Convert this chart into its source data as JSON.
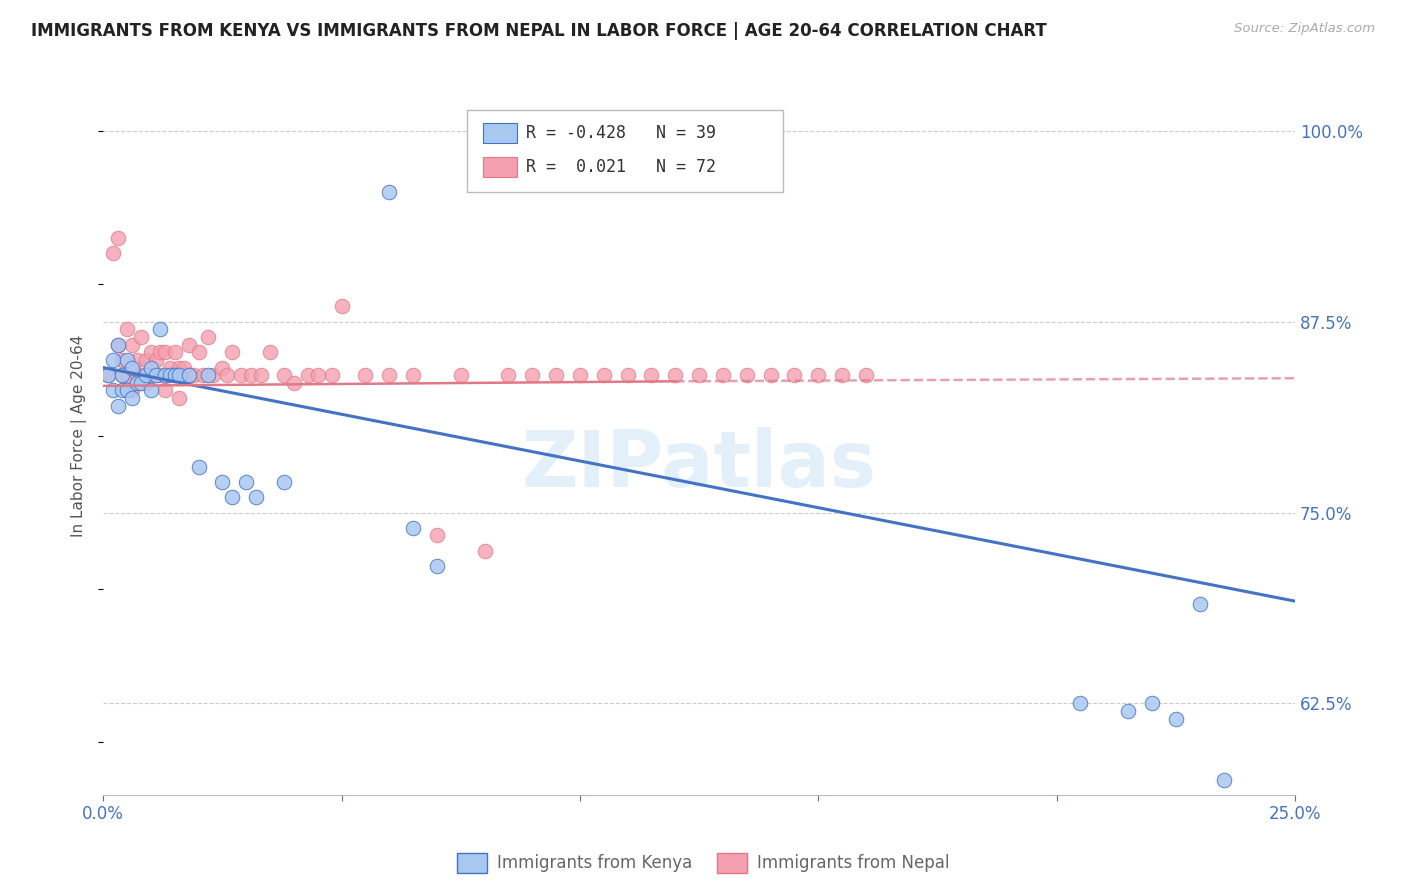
{
  "title": "IMMIGRANTS FROM KENYA VS IMMIGRANTS FROM NEPAL IN LABOR FORCE | AGE 20-64 CORRELATION CHART",
  "source": "Source: ZipAtlas.com",
  "ylabel": "In Labor Force | Age 20-64",
  "xlim": [
    0.0,
    0.25
  ],
  "ylim": [
    0.565,
    1.035
  ],
  "yticks": [
    0.625,
    0.75,
    0.875,
    1.0
  ],
  "ytick_labels": [
    "62.5%",
    "75.0%",
    "87.5%",
    "100.0%"
  ],
  "xticks": [
    0.0,
    0.05,
    0.1,
    0.15,
    0.2,
    0.25
  ],
  "xtick_labels": [
    "0.0%",
    "",
    "",
    "",
    "",
    "25.0%"
  ],
  "kenya_R": -0.428,
  "kenya_N": 39,
  "nepal_R": 0.021,
  "nepal_N": 72,
  "kenya_color": "#a8c8f0",
  "nepal_color": "#f4a0b0",
  "kenya_edge_color": "#4472c4",
  "nepal_edge_color": "#e07888",
  "kenya_line_color": "#4472c4",
  "nepal_line_color": "#e07888",
  "kenya_scatter_x": [
    0.001,
    0.002,
    0.002,
    0.003,
    0.003,
    0.004,
    0.004,
    0.005,
    0.005,
    0.006,
    0.006,
    0.007,
    0.008,
    0.009,
    0.01,
    0.01,
    0.011,
    0.012,
    0.013,
    0.014,
    0.015,
    0.016,
    0.018,
    0.02,
    0.022,
    0.025,
    0.027,
    0.03,
    0.032,
    0.038,
    0.06,
    0.065,
    0.07,
    0.205,
    0.215,
    0.22,
    0.225,
    0.23,
    0.235
  ],
  "kenya_scatter_y": [
    0.84,
    0.85,
    0.83,
    0.86,
    0.82,
    0.84,
    0.83,
    0.85,
    0.83,
    0.845,
    0.825,
    0.835,
    0.835,
    0.84,
    0.845,
    0.83,
    0.84,
    0.87,
    0.84,
    0.84,
    0.84,
    0.84,
    0.84,
    0.78,
    0.84,
    0.77,
    0.76,
    0.77,
    0.76,
    0.77,
    0.96,
    0.74,
    0.715,
    0.625,
    0.62,
    0.625,
    0.615,
    0.69,
    0.575
  ],
  "nepal_scatter_x": [
    0.001,
    0.002,
    0.003,
    0.003,
    0.004,
    0.004,
    0.005,
    0.005,
    0.006,
    0.006,
    0.007,
    0.007,
    0.008,
    0.008,
    0.009,
    0.009,
    0.01,
    0.01,
    0.011,
    0.011,
    0.012,
    0.012,
    0.013,
    0.013,
    0.014,
    0.015,
    0.015,
    0.016,
    0.016,
    0.017,
    0.018,
    0.018,
    0.019,
    0.02,
    0.021,
    0.022,
    0.023,
    0.025,
    0.026,
    0.027,
    0.029,
    0.031,
    0.033,
    0.035,
    0.038,
    0.04,
    0.043,
    0.045,
    0.048,
    0.05,
    0.055,
    0.06,
    0.065,
    0.07,
    0.075,
    0.08,
    0.085,
    0.09,
    0.095,
    0.1,
    0.105,
    0.11,
    0.115,
    0.12,
    0.125,
    0.13,
    0.135,
    0.14,
    0.145,
    0.15,
    0.155,
    0.16
  ],
  "nepal_scatter_y": [
    0.84,
    0.92,
    0.93,
    0.86,
    0.85,
    0.84,
    0.87,
    0.84,
    0.86,
    0.83,
    0.85,
    0.84,
    0.865,
    0.84,
    0.85,
    0.835,
    0.855,
    0.84,
    0.85,
    0.84,
    0.855,
    0.84,
    0.855,
    0.83,
    0.845,
    0.855,
    0.84,
    0.845,
    0.825,
    0.845,
    0.86,
    0.84,
    0.84,
    0.855,
    0.84,
    0.865,
    0.84,
    0.845,
    0.84,
    0.855,
    0.84,
    0.84,
    0.84,
    0.855,
    0.84,
    0.835,
    0.84,
    0.84,
    0.84,
    0.885,
    0.84,
    0.84,
    0.84,
    0.735,
    0.84,
    0.725,
    0.84,
    0.84,
    0.84,
    0.84,
    0.84,
    0.84,
    0.84,
    0.84,
    0.84,
    0.84,
    0.84,
    0.84,
    0.84,
    0.84,
    0.84,
    0.84
  ],
  "kenya_trend_x": [
    0.0,
    0.25
  ],
  "kenya_trend_y": [
    0.845,
    0.692
  ],
  "nepal_solid_trend_x": [
    0.0,
    0.12
  ],
  "nepal_solid_trend_y": [
    0.833,
    0.836
  ],
  "nepal_dashed_trend_x": [
    0.12,
    0.25
  ],
  "nepal_dashed_trend_y": [
    0.836,
    0.838
  ],
  "legend_kenya_label": "Immigrants from Kenya",
  "legend_nepal_label": "Immigrants from Nepal",
  "background_color": "#ffffff",
  "grid_color": "#cccccc",
  "title_color": "#222222",
  "axis_color": "#4472c4",
  "watermark": "ZIPatlas"
}
